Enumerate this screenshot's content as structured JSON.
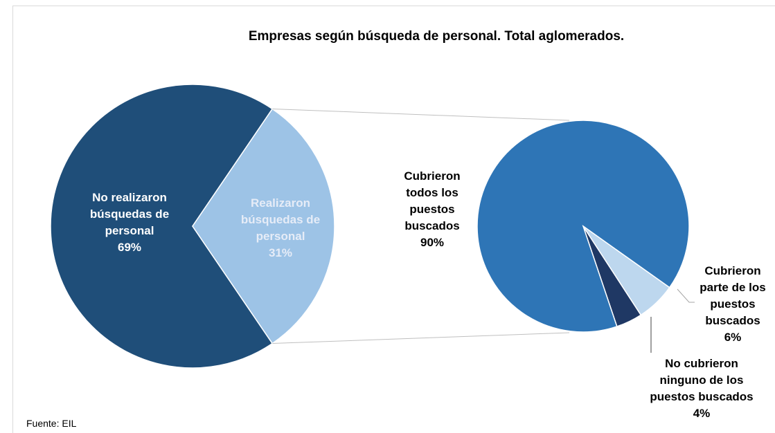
{
  "chart_data": [
    {
      "type": "pie",
      "title": "Empresas según búsqueda de personal. Total aglomerados.",
      "categories": [
        "No realizaron búsquedas de personal",
        "Realizaron búsquedas de personal"
      ],
      "values": [
        69,
        31
      ],
      "value_labels": [
        "69%",
        "31%"
      ],
      "colors": [
        "#1f4e79",
        "#9dc3e6"
      ]
    },
    {
      "type": "pie",
      "categories": [
        "Cubrieron todos los puestos buscados",
        "Cubrieron parte de los puestos buscados",
        "No cubrieron ninguno de los puestos buscados"
      ],
      "values": [
        90,
        6,
        4
      ],
      "value_labels": [
        "90%",
        "6%",
        "4%"
      ],
      "colors": [
        "#2e75b6",
        "#bdd7ee",
        "#1f3864"
      ]
    }
  ],
  "source": "Fuente: EIL"
}
